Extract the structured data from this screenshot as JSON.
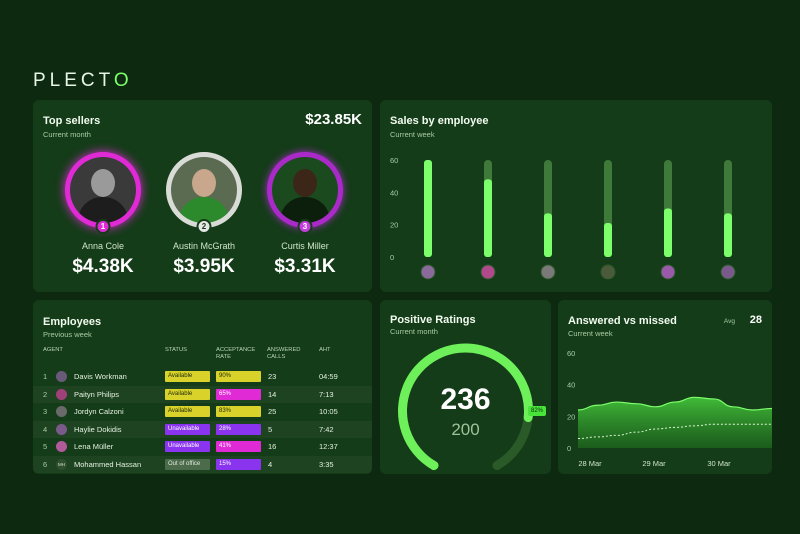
{
  "brand": {
    "name_main": "PLECT",
    "name_mark": "O"
  },
  "colors": {
    "bg": "#0d2a10",
    "card": "#143c18",
    "accent": "#7cff6a",
    "magenta": "#e02ad6",
    "purple": "#8a34f0"
  },
  "top_sellers": {
    "title": "Top sellers",
    "subtitle": "Current month",
    "total": "$23.85K",
    "sellers": [
      {
        "rank": "1",
        "name": "Anna Cole",
        "amount": "$4.38K"
      },
      {
        "rank": "2",
        "name": "Austin McGrath",
        "amount": "$3.95K"
      },
      {
        "rank": "3",
        "name": "Curtis Miller",
        "amount": "$3.31K"
      }
    ]
  },
  "sales_by_employee": {
    "title": "Sales by employee",
    "subtitle": "Current week",
    "chart_data": {
      "type": "bar",
      "y_ticks": [
        "60",
        "40",
        "20",
        "0"
      ],
      "ylim": [
        0,
        60
      ],
      "max_value": 60,
      "values": [
        60,
        48,
        27,
        21,
        30,
        27
      ]
    }
  },
  "employees": {
    "title": "Employees",
    "subtitle": "Previous week",
    "headers": {
      "agent": "AGENT",
      "status": "STATUS",
      "acceptance": "ACCEPTANCE RATE",
      "answered": "ANSWERED CALLS",
      "aht": "AHT"
    },
    "rows": [
      {
        "idx": "1",
        "name": "Davis Workman",
        "status": "Available",
        "rate": "90%",
        "calls": "23",
        "aht": "04:59"
      },
      {
        "idx": "2",
        "name": "Paityn Philips",
        "status": "Available",
        "rate": "65%",
        "calls": "14",
        "aht": "7:13"
      },
      {
        "idx": "3",
        "name": "Jordyn Calzoni",
        "status": "Available",
        "rate": "83%",
        "calls": "25",
        "aht": "10:05"
      },
      {
        "idx": "4",
        "name": "Haylie Dokidis",
        "status": "Unavailable",
        "rate": "28%",
        "calls": "5",
        "aht": "7:42"
      },
      {
        "idx": "5",
        "name": "Lena Müller",
        "status": "Unavailable",
        "rate": "41%",
        "calls": "16",
        "aht": "12:37"
      },
      {
        "idx": "6",
        "name": "Mohammed Hassan",
        "status": "Out of office",
        "rate": "15%",
        "calls": "4",
        "aht": "3:35",
        "initials": "MH"
      }
    ]
  },
  "positive_ratings": {
    "title": "Positive Ratings",
    "subtitle": "Current month",
    "value": "236",
    "target": "200",
    "percent": "82%",
    "fraction": 0.82
  },
  "answered_vs_missed": {
    "title": "Answered vs missed",
    "subtitle": "Current week",
    "avg_label": "Avg",
    "avg_value": "28",
    "chart_data": {
      "type": "area",
      "y_ticks": [
        "60",
        "40",
        "20",
        "0"
      ],
      "ylim": [
        0,
        60
      ],
      "x_ticks": [
        "28 Mar",
        "29 Mar",
        "30 Mar"
      ],
      "series": [
        {
          "values": [
            24,
            27,
            29,
            28,
            26,
            29,
            32,
            31,
            26,
            24,
            25
          ]
        },
        {
          "values": [
            6,
            7,
            8,
            10,
            12,
            13,
            14,
            15,
            15,
            15,
            15
          ]
        }
      ]
    }
  }
}
